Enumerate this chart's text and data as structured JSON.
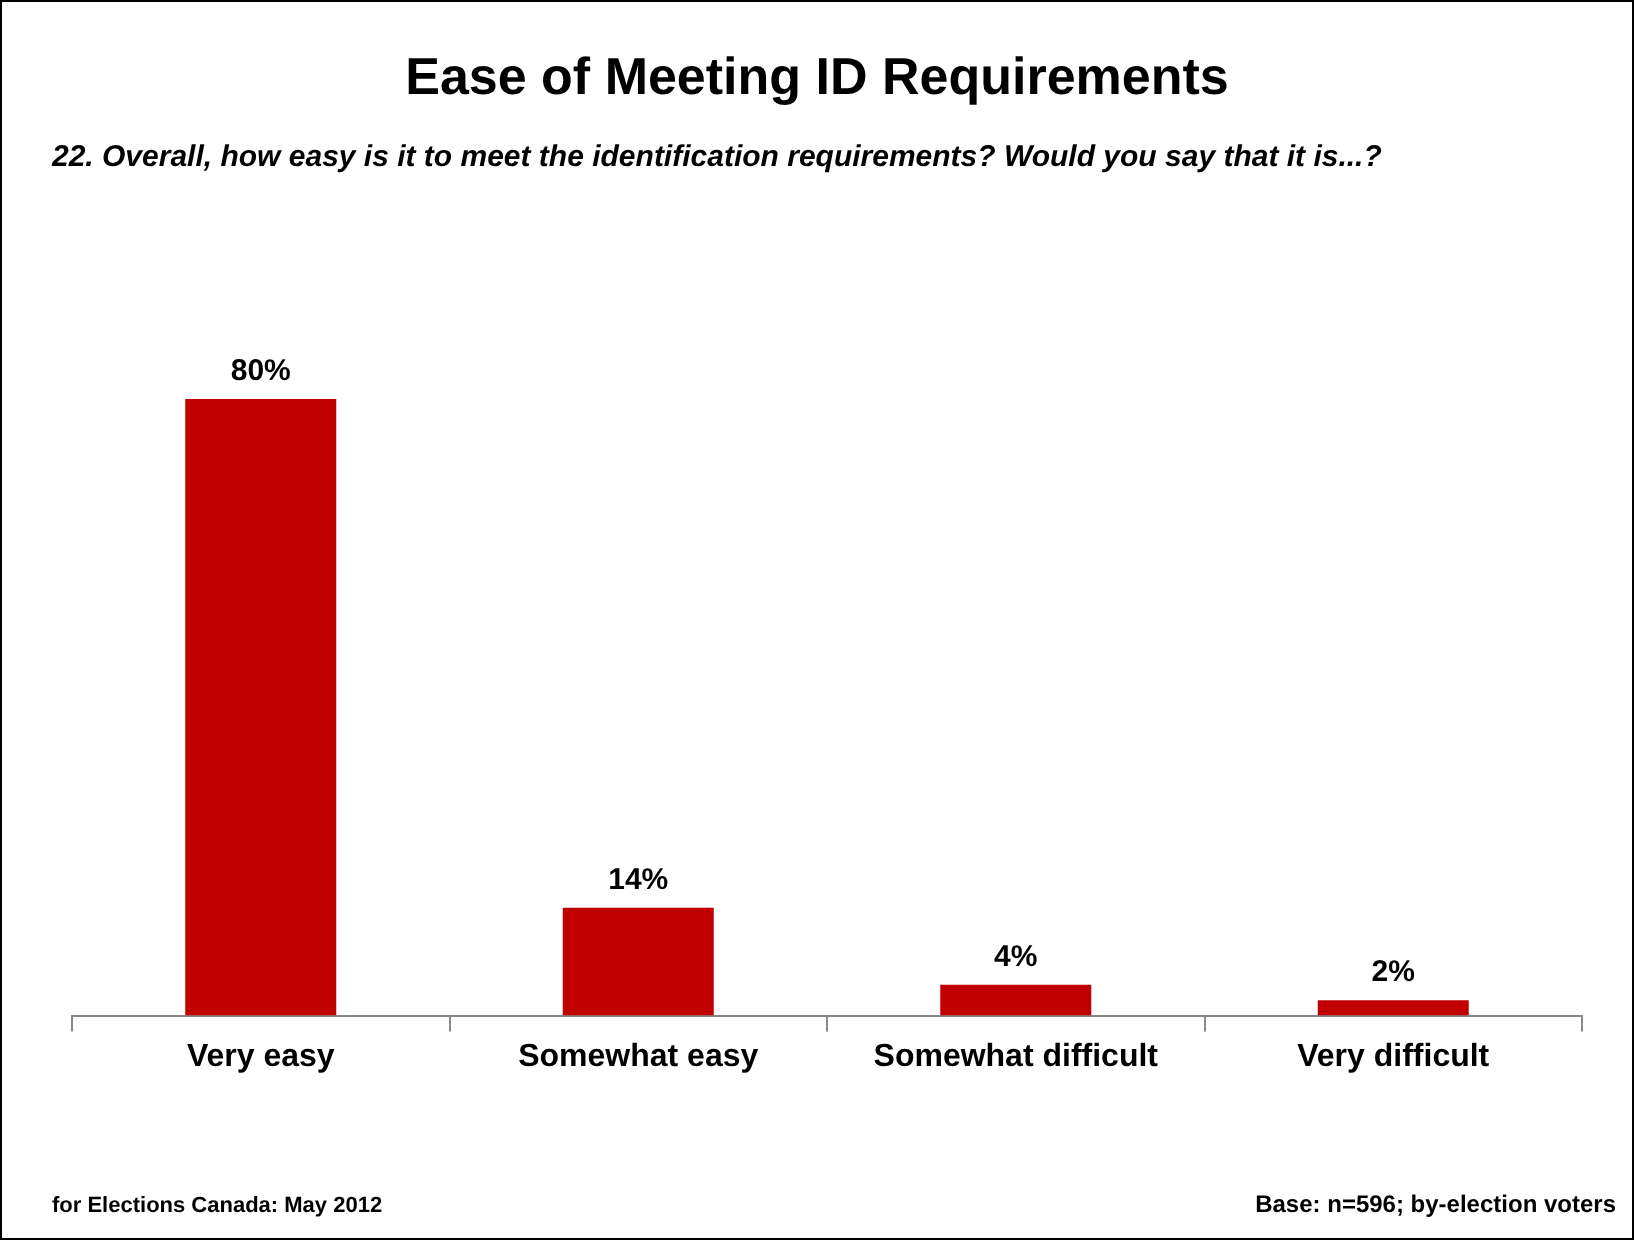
{
  "chart_data": {
    "type": "bar",
    "title": "Ease of Meeting ID Requirements",
    "subtitle": "22. Overall, how easy is it to meet the identification requirements? Would you say that it is...?",
    "categories": [
      "Very easy",
      "Somewhat easy",
      "Somewhat difficult",
      "Very difficult"
    ],
    "values": [
      80,
      14,
      4,
      2
    ],
    "value_labels": [
      "80%",
      "14%",
      "4%",
      "2%"
    ],
    "color": "#c00000",
    "grid": false,
    "legend": false,
    "annotations": [
      "for Elections Canada: May 2012",
      "Base: n=596; by-election voters"
    ]
  }
}
